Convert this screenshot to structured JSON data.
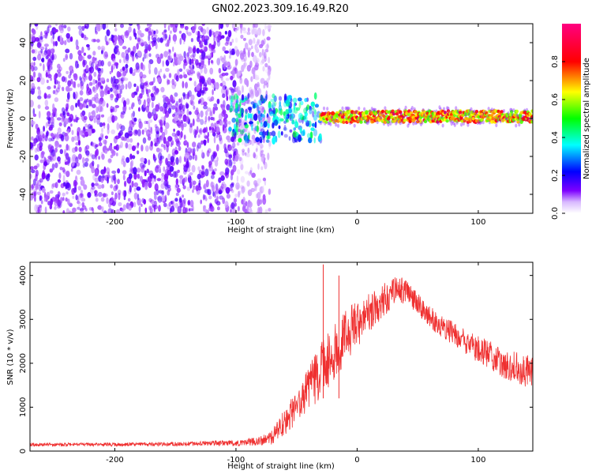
{
  "title": "GN02.2023.309.16.49.R20",
  "colors": {
    "snr_line": "#ef3030",
    "background": "#ffffff",
    "axis": "#000000"
  },
  "chart_data": [
    {
      "type": "heatmap",
      "xlabel": "Height of straight line (km)",
      "ylabel": "Frequency (Hz)",
      "xlim": [
        -270,
        145
      ],
      "ylim": [
        -50,
        50
      ],
      "x_ticks": [
        -200,
        -100,
        0,
        100
      ],
      "x_tick_labels": [
        "-200",
        "-100",
        "0",
        "100"
      ],
      "y_ticks": [
        40,
        20,
        0,
        -20,
        -40
      ],
      "y_tick_labels": [
        "40",
        "20",
        "0",
        "-20",
        "-40"
      ],
      "colorbar": {
        "label": "Normalized spectral amplitude",
        "range": [
          0,
          1
        ],
        "ticks": [
          0.0,
          0.2,
          0.4,
          0.6,
          0.8
        ],
        "tick_labels": [
          "0.0",
          "0.2",
          "0.4",
          "0.6",
          "0.8"
        ],
        "colormap": [
          "#ffffff",
          "#7d00ff",
          "#0000ff",
          "#00ffff",
          "#00ff00",
          "#ffff00",
          "#ff0000",
          "#ff0080"
        ]
      },
      "features": [
        {
          "x_range": [
            -270,
            -100
          ],
          "freq_range": [
            -50,
            50
          ],
          "amplitude": [
            0.05,
            0.2
          ],
          "description": "broadband noise"
        },
        {
          "x_range": [
            -100,
            -72
          ],
          "freq_range": [
            -50,
            50
          ],
          "amplitude": [
            0.02,
            0.1
          ],
          "description": "sparse noise"
        },
        {
          "x_range": [
            -105,
            -30
          ],
          "freq_range": [
            -12,
            12
          ],
          "amplitude": [
            0.2,
            0.55
          ],
          "description": "emerging signal"
        },
        {
          "x_range": [
            -30,
            145
          ],
          "freq_center": 1,
          "freq_halfwidth": 3,
          "amplitude": [
            0.6,
            0.9
          ],
          "description": "narrow carrier line"
        }
      ]
    },
    {
      "type": "line",
      "xlabel": "Height of straight line (km)",
      "ylabel": "SNR (10 * v/v)",
      "xlim": [
        -270,
        145
      ],
      "ylim": [
        0,
        4300
      ],
      "x_ticks": [
        -200,
        -100,
        0,
        100
      ],
      "x_tick_labels": [
        "-200",
        "-100",
        "0",
        "100"
      ],
      "y_ticks": [
        0,
        1000,
        2000,
        3000,
        4000
      ],
      "y_tick_labels": [
        "0",
        "1000",
        "2000",
        "3000",
        "4000"
      ],
      "series": [
        {
          "x": [
            -270,
            -250,
            -200,
            -150,
            -120,
            -100,
            -80,
            -70,
            -60,
            -50,
            -40,
            -30,
            -20,
            -10,
            0,
            10,
            20,
            30,
            40,
            50,
            60,
            70,
            80,
            90,
            100,
            110,
            120,
            130,
            145
          ],
          "y": [
            150,
            150,
            150,
            160,
            180,
            180,
            230,
            320,
            650,
            1000,
            1400,
            1800,
            2200,
            2600,
            2900,
            3150,
            3400,
            3650,
            3650,
            3400,
            3050,
            2850,
            2650,
            2450,
            2300,
            2200,
            2000,
            1900,
            1800
          ],
          "spread": [
            40,
            40,
            40,
            45,
            55,
            70,
            100,
            170,
            300,
            420,
            550,
            650,
            650,
            600,
            550,
            450,
            400,
            350,
            320,
            280,
            250,
            260,
            280,
            300,
            320,
            330,
            340,
            360,
            380
          ]
        }
      ],
      "annotations": [
        {
          "x": -28,
          "y": 4250,
          "description": "spike"
        },
        {
          "x": -15,
          "y": 4000,
          "description": "spike"
        }
      ]
    }
  ]
}
